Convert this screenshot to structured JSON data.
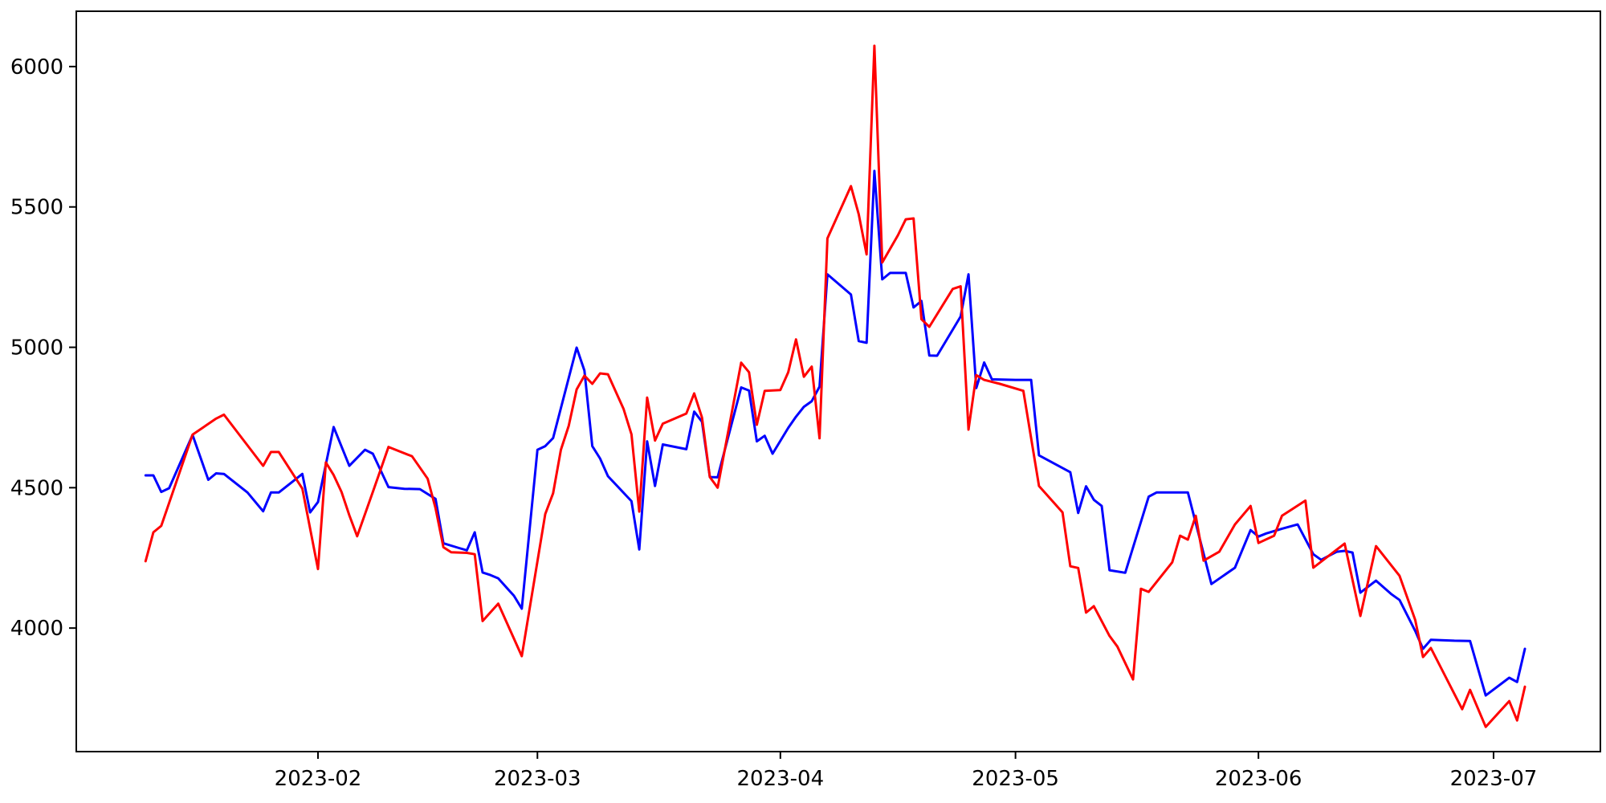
{
  "figure": {
    "background": "#ffffff",
    "axes_color": "#000000"
  },
  "chart_data": {
    "type": "line",
    "title": "",
    "xlabel": "",
    "ylabel": "",
    "grid": false,
    "legend": "none",
    "ylim": [
      3560,
      6197
    ],
    "yticks": [
      4000,
      4500,
      5000,
      5500,
      6000
    ],
    "x_epoch": "2023-01-01",
    "xlim_days": [
      0.16,
      194.63
    ],
    "x_ticks": [
      {
        "date": "2023-02-01",
        "label": "2023-02"
      },
      {
        "date": "2023-03-01",
        "label": "2023-03"
      },
      {
        "date": "2023-04-01",
        "label": "2023-04"
      },
      {
        "date": "2023-05-01",
        "label": "2023-05"
      },
      {
        "date": "2023-06-01",
        "label": "2023-06"
      },
      {
        "date": "2023-07-01",
        "label": "2023-07"
      }
    ],
    "series": [
      {
        "name": "blue",
        "color": "#0000ff",
        "line_width": 3,
        "x": [
          "2023-01-10",
          "2023-01-11",
          "2023-01-12",
          "2023-01-13",
          "2023-01-16",
          "2023-01-18",
          "2023-01-19",
          "2023-01-20",
          "2023-01-23",
          "2023-01-25",
          "2023-01-26",
          "2023-01-27",
          "2023-01-30",
          "2023-01-31",
          "2023-02-01",
          "2023-02-03",
          "2023-02-05",
          "2023-02-07",
          "2023-02-08",
          "2023-02-10",
          "2023-02-12",
          "2023-02-14",
          "2023-02-16",
          "2023-02-17",
          "2023-02-19",
          "2023-02-20",
          "2023-02-21",
          "2023-02-22",
          "2023-02-23",
          "2023-02-24",
          "2023-02-26",
          "2023-02-27",
          "2023-03-01",
          "2023-03-02",
          "2023-03-03",
          "2023-03-06",
          "2023-03-07",
          "2023-03-08",
          "2023-03-09",
          "2023-03-10",
          "2023-03-13",
          "2023-03-14",
          "2023-03-15",
          "2023-03-16",
          "2023-03-17",
          "2023-03-20",
          "2023-03-21",
          "2023-03-22",
          "2023-03-23",
          "2023-03-24",
          "2023-03-27",
          "2023-03-28",
          "2023-03-29",
          "2023-03-30",
          "2023-03-31",
          "2023-04-02",
          "2023-04-03",
          "2023-04-04",
          "2023-04-05",
          "2023-04-06",
          "2023-04-07",
          "2023-04-10",
          "2023-04-11",
          "2023-04-12",
          "2023-04-13",
          "2023-04-14",
          "2023-04-15",
          "2023-04-17",
          "2023-04-18",
          "2023-04-19",
          "2023-04-20",
          "2023-04-21",
          "2023-04-24",
          "2023-04-25",
          "2023-04-26",
          "2023-04-27",
          "2023-04-28",
          "2023-05-01",
          "2023-05-03",
          "2023-05-04",
          "2023-05-08",
          "2023-05-09",
          "2023-05-10",
          "2023-05-11",
          "2023-05-12",
          "2023-05-13",
          "2023-05-15",
          "2023-05-18",
          "2023-05-19",
          "2023-05-23",
          "2023-05-26",
          "2023-05-29",
          "2023-05-31",
          "2023-06-01",
          "2023-06-02",
          "2023-06-04",
          "2023-06-06",
          "2023-06-08",
          "2023-06-09",
          "2023-06-11",
          "2023-06-12",
          "2023-06-13",
          "2023-06-14",
          "2023-06-16",
          "2023-06-18",
          "2023-06-19",
          "2023-06-21",
          "2023-06-22",
          "2023-06-23",
          "2023-06-26",
          "2023-06-28",
          "2023-06-30",
          "2023-07-03",
          "2023-07-04",
          "2023-07-05"
        ],
        "y": [
          4544,
          4544,
          4485,
          4498,
          4688,
          4528,
          4551,
          4549,
          4483,
          4416,
          4483,
          4483,
          4549,
          4412,
          4449,
          4716,
          4578,
          4635,
          4621,
          4502,
          4496,
          4495,
          4460,
          4302,
          4285,
          4277,
          4341,
          4198,
          4189,
          4177,
          4115,
          4069,
          4635,
          4648,
          4677,
          4999,
          4917,
          4648,
          4604,
          4541,
          4452,
          4280,
          4665,
          4506,
          4654,
          4637,
          4771,
          4735,
          4538,
          4537,
          4857,
          4846,
          4665,
          4685,
          4621,
          4713,
          4753,
          4788,
          4808,
          4860,
          5260,
          5188,
          5022,
          5016,
          5628,
          5242,
          5265,
          5265,
          5142,
          5165,
          4971,
          4970,
          5110,
          5260,
          4855,
          4946,
          4886,
          4884,
          4884,
          4615,
          4555,
          4410,
          4505,
          4457,
          4435,
          4206,
          4197,
          4468,
          4483,
          4483,
          4157,
          4215,
          4349,
          4326,
          4337,
          4354,
          4369,
          4263,
          4243,
          4272,
          4275,
          4269,
          4126,
          4169,
          4120,
          4100,
          3990,
          3926,
          3958,
          3955,
          3954,
          3760,
          3823,
          3808,
          3926
        ]
      },
      {
        "name": "red",
        "color": "#ff0000",
        "line_width": 3,
        "x": [
          "2023-01-10",
          "2023-01-11",
          "2023-01-12",
          "2023-01-16",
          "2023-01-19",
          "2023-01-20",
          "2023-01-25",
          "2023-01-26",
          "2023-01-27",
          "2023-01-30",
          "2023-02-01",
          "2023-02-02",
          "2023-02-03",
          "2023-02-04",
          "2023-02-05",
          "2023-02-06",
          "2023-02-08",
          "2023-02-09",
          "2023-02-10",
          "2023-02-13",
          "2023-02-15",
          "2023-02-16",
          "2023-02-17",
          "2023-02-18",
          "2023-02-20",
          "2023-02-21",
          "2023-02-22",
          "2023-02-24",
          "2023-02-27",
          "2023-03-02",
          "2023-03-03",
          "2023-03-04",
          "2023-03-05",
          "2023-03-06",
          "2023-03-07",
          "2023-03-08",
          "2023-03-09",
          "2023-03-10",
          "2023-03-12",
          "2023-03-13",
          "2023-03-14",
          "2023-03-15",
          "2023-03-16",
          "2023-03-17",
          "2023-03-20",
          "2023-03-21",
          "2023-03-22",
          "2023-03-23",
          "2023-03-24",
          "2023-03-27",
          "2023-03-28",
          "2023-03-29",
          "2023-03-30",
          "2023-04-01",
          "2023-04-02",
          "2023-04-03",
          "2023-04-04",
          "2023-04-05",
          "2023-04-06",
          "2023-04-07",
          "2023-04-10",
          "2023-04-11",
          "2023-04-12",
          "2023-04-13",
          "2023-04-14",
          "2023-04-16",
          "2023-04-17",
          "2023-04-18",
          "2023-04-19",
          "2023-04-20",
          "2023-04-23",
          "2023-04-24",
          "2023-04-25",
          "2023-04-26",
          "2023-04-27",
          "2023-04-29",
          "2023-05-02",
          "2023-05-04",
          "2023-05-07",
          "2023-05-08",
          "2023-05-09",
          "2023-05-10",
          "2023-05-11",
          "2023-05-13",
          "2023-05-14",
          "2023-05-16",
          "2023-05-17",
          "2023-05-18",
          "2023-05-21",
          "2023-05-22",
          "2023-05-23",
          "2023-05-24",
          "2023-05-25",
          "2023-05-27",
          "2023-05-29",
          "2023-05-31",
          "2023-06-01",
          "2023-06-03",
          "2023-06-04",
          "2023-06-07",
          "2023-06-08",
          "2023-06-12",
          "2023-06-14",
          "2023-06-16",
          "2023-06-19",
          "2023-06-21",
          "2023-06-22",
          "2023-06-23",
          "2023-06-27",
          "2023-06-28",
          "2023-06-30",
          "2023-07-03",
          "2023-07-04",
          "2023-07-05"
        ],
        "y": [
          4238,
          4341,
          4364,
          4689,
          4746,
          4760,
          4578,
          4627,
          4627,
          4497,
          4210,
          4590,
          4545,
          4485,
          4402,
          4327,
          4485,
          4565,
          4645,
          4612,
          4532,
          4427,
          4288,
          4270,
          4268,
          4263,
          4025,
          4087,
          3900,
          4406,
          4480,
          4635,
          4721,
          4850,
          4899,
          4870,
          4907,
          4904,
          4780,
          4690,
          4415,
          4821,
          4668,
          4728,
          4764,
          4836,
          4750,
          4538,
          4500,
          4945,
          4911,
          4724,
          4845,
          4848,
          4911,
          5028,
          4895,
          4931,
          4676,
          5388,
          5574,
          5474,
          5331,
          6074,
          5302,
          5399,
          5456,
          5459,
          5100,
          5073,
          5208,
          5217,
          4707,
          4901,
          4884,
          4870,
          4845,
          4506,
          4412,
          4220,
          4214,
          4055,
          4078,
          3972,
          3934,
          3817,
          4140,
          4129,
          4234,
          4329,
          4315,
          4400,
          4240,
          4272,
          4369,
          4435,
          4303,
          4329,
          4400,
          4454,
          4215,
          4301,
          4043,
          4292,
          4186,
          4029,
          3897,
          3929,
          3711,
          3780,
          3648,
          3740,
          3671,
          3791
        ]
      }
    ]
  }
}
